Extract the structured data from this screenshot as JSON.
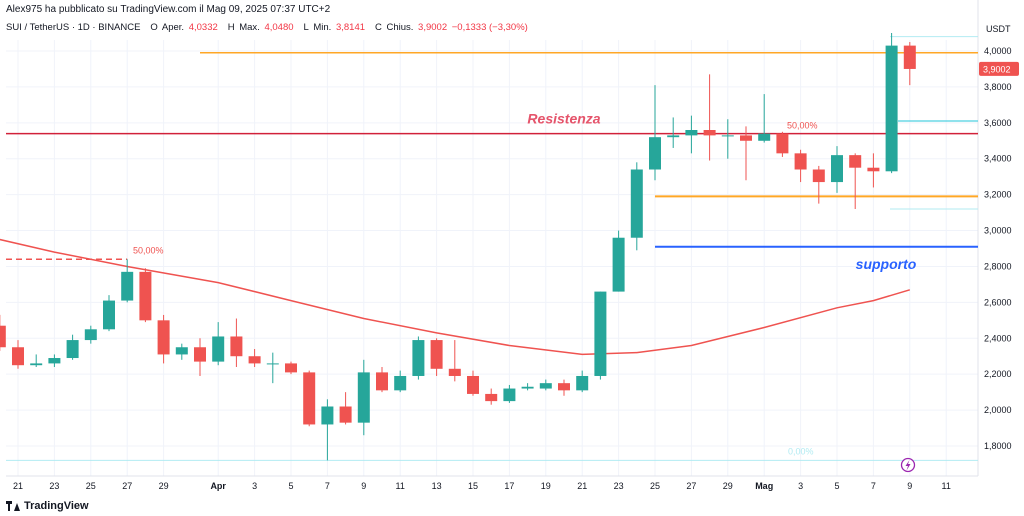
{
  "header": {
    "published": "Alex975 ha pubblicato su TradingView.com il Mag 09, 2025 07:37 UTC+2",
    "symbol": "SUI / TetherUS · 1D · BINANCE",
    "open_label": "O",
    "open_text": "Aper.",
    "open_value": "4,0332",
    "high_label": "H",
    "high_text": "Max.",
    "high_value": "4,0480",
    "low_label": "L",
    "low_text": "Min.",
    "low_value": "3,8141",
    "close_label": "C",
    "close_text": "Chius.",
    "close_value": "3,9002",
    "change": "−0,1333 (−3,30%)"
  },
  "footer": {
    "brand": "TradingView"
  },
  "colors": {
    "up": "#26a69a",
    "down": "#ef5350",
    "ma": "#ef5350",
    "resistance": "#d1213a",
    "support": "#2962ff",
    "orange": "#ffa726",
    "cyan": "#4dd0e1"
  },
  "chart_data": {
    "type": "candlestick",
    "y_unit": "USDT",
    "ylim": [
      1.7,
      4.2
    ],
    "y_ticks": [
      "4,0000",
      "3,8000",
      "3,6000",
      "3,4000",
      "3,2000",
      "3,0000",
      "2,8000",
      "2,6000",
      "2,4000",
      "2,2000",
      "2,0000",
      "1,8000"
    ],
    "y_tick_values": [
      4.0,
      3.8,
      3.6,
      3.4,
      3.2,
      3.0,
      2.8,
      2.6,
      2.4,
      2.2,
      2.0,
      1.8
    ],
    "x_start": "2025-03-21",
    "x_end": "2025-05-11",
    "x_ticks": [
      {
        "date": "2025-03-21",
        "label": "21"
      },
      {
        "date": "2025-03-23",
        "label": "23"
      },
      {
        "date": "2025-03-25",
        "label": "25"
      },
      {
        "date": "2025-03-27",
        "label": "27"
      },
      {
        "date": "2025-03-29",
        "label": "29"
      },
      {
        "date": "2025-04-01",
        "label": "Apr"
      },
      {
        "date": "2025-04-03",
        "label": "3"
      },
      {
        "date": "2025-04-05",
        "label": "5"
      },
      {
        "date": "2025-04-07",
        "label": "7"
      },
      {
        "date": "2025-04-09",
        "label": "9"
      },
      {
        "date": "2025-04-11",
        "label": "11"
      },
      {
        "date": "2025-04-13",
        "label": "13"
      },
      {
        "date": "2025-04-15",
        "label": "15"
      },
      {
        "date": "2025-04-17",
        "label": "17"
      },
      {
        "date": "2025-04-19",
        "label": "19"
      },
      {
        "date": "2025-04-21",
        "label": "21"
      },
      {
        "date": "2025-04-23",
        "label": "23"
      },
      {
        "date": "2025-04-25",
        "label": "25"
      },
      {
        "date": "2025-04-27",
        "label": "27"
      },
      {
        "date": "2025-04-29",
        "label": "29"
      },
      {
        "date": "2025-05-01",
        "label": "Mag"
      },
      {
        "date": "2025-05-03",
        "label": "3"
      },
      {
        "date": "2025-05-05",
        "label": "5"
      },
      {
        "date": "2025-05-07",
        "label": "7"
      },
      {
        "date": "2025-05-09",
        "label": "9"
      },
      {
        "date": "2025-05-11",
        "label": "11"
      }
    ],
    "candles": [
      {
        "date": "2025-03-20",
        "o": 2.47,
        "h": 2.53,
        "l": 2.33,
        "c": 2.35
      },
      {
        "date": "2025-03-21",
        "o": 2.35,
        "h": 2.39,
        "l": 2.23,
        "c": 2.25
      },
      {
        "date": "2025-03-22",
        "o": 2.25,
        "h": 2.31,
        "l": 2.24,
        "c": 2.26
      },
      {
        "date": "2025-03-23",
        "o": 2.26,
        "h": 2.31,
        "l": 2.24,
        "c": 2.29
      },
      {
        "date": "2025-03-24",
        "o": 2.29,
        "h": 2.42,
        "l": 2.28,
        "c": 2.39
      },
      {
        "date": "2025-03-25",
        "o": 2.39,
        "h": 2.47,
        "l": 2.37,
        "c": 2.45
      },
      {
        "date": "2025-03-26",
        "o": 2.45,
        "h": 2.64,
        "l": 2.44,
        "c": 2.61
      },
      {
        "date": "2025-03-27",
        "o": 2.61,
        "h": 2.84,
        "l": 2.6,
        "c": 2.77
      },
      {
        "date": "2025-03-28",
        "o": 2.77,
        "h": 2.79,
        "l": 2.49,
        "c": 2.5
      },
      {
        "date": "2025-03-29",
        "o": 2.5,
        "h": 2.53,
        "l": 2.26,
        "c": 2.31
      },
      {
        "date": "2025-03-30",
        "o": 2.31,
        "h": 2.37,
        "l": 2.28,
        "c": 2.35
      },
      {
        "date": "2025-03-31",
        "o": 2.35,
        "h": 2.4,
        "l": 2.19,
        "c": 2.27
      },
      {
        "date": "2025-04-01",
        "o": 2.27,
        "h": 2.49,
        "l": 2.25,
        "c": 2.41
      },
      {
        "date": "2025-04-02",
        "o": 2.41,
        "h": 2.51,
        "l": 2.24,
        "c": 2.3
      },
      {
        "date": "2025-04-03",
        "o": 2.3,
        "h": 2.34,
        "l": 2.24,
        "c": 2.26
      },
      {
        "date": "2025-04-04",
        "o": 2.26,
        "h": 2.32,
        "l": 2.15,
        "c": 2.26
      },
      {
        "date": "2025-04-05",
        "o": 2.26,
        "h": 2.27,
        "l": 2.2,
        "c": 2.21
      },
      {
        "date": "2025-04-06",
        "o": 2.21,
        "h": 2.22,
        "l": 1.91,
        "c": 1.92
      },
      {
        "date": "2025-04-07",
        "o": 1.92,
        "h": 2.06,
        "l": 1.72,
        "c": 2.02
      },
      {
        "date": "2025-04-08",
        "o": 2.02,
        "h": 2.1,
        "l": 1.92,
        "c": 1.93
      },
      {
        "date": "2025-04-09",
        "o": 1.93,
        "h": 2.28,
        "l": 1.86,
        "c": 2.21
      },
      {
        "date": "2025-04-10",
        "o": 2.21,
        "h": 2.24,
        "l": 2.1,
        "c": 2.11
      },
      {
        "date": "2025-04-11",
        "o": 2.11,
        "h": 2.22,
        "l": 2.1,
        "c": 2.19
      },
      {
        "date": "2025-04-12",
        "o": 2.19,
        "h": 2.41,
        "l": 2.17,
        "c": 2.39
      },
      {
        "date": "2025-04-13",
        "o": 2.39,
        "h": 2.4,
        "l": 2.19,
        "c": 2.23
      },
      {
        "date": "2025-04-14",
        "o": 2.23,
        "h": 2.39,
        "l": 2.16,
        "c": 2.19
      },
      {
        "date": "2025-04-15",
        "o": 2.19,
        "h": 2.22,
        "l": 2.08,
        "c": 2.09
      },
      {
        "date": "2025-04-16",
        "o": 2.09,
        "h": 2.12,
        "l": 2.03,
        "c": 2.05
      },
      {
        "date": "2025-04-17",
        "o": 2.05,
        "h": 2.14,
        "l": 2.04,
        "c": 2.12
      },
      {
        "date": "2025-04-18",
        "o": 2.12,
        "h": 2.15,
        "l": 2.11,
        "c": 2.13
      },
      {
        "date": "2025-04-19",
        "o": 2.12,
        "h": 2.17,
        "l": 2.11,
        "c": 2.15
      },
      {
        "date": "2025-04-20",
        "o": 2.15,
        "h": 2.17,
        "l": 2.08,
        "c": 2.11
      },
      {
        "date": "2025-04-21",
        "o": 2.11,
        "h": 2.22,
        "l": 2.1,
        "c": 2.19
      },
      {
        "date": "2025-04-22",
        "o": 2.19,
        "h": 2.66,
        "l": 2.17,
        "c": 2.66
      },
      {
        "date": "2025-04-23",
        "o": 2.66,
        "h": 3.0,
        "l": 2.66,
        "c": 2.96
      },
      {
        "date": "2025-04-24",
        "o": 2.96,
        "h": 3.38,
        "l": 2.89,
        "c": 3.34
      },
      {
        "date": "2025-04-25",
        "o": 3.34,
        "h": 3.81,
        "l": 3.28,
        "c": 3.52
      },
      {
        "date": "2025-04-26",
        "o": 3.52,
        "h": 3.63,
        "l": 3.46,
        "c": 3.53
      },
      {
        "date": "2025-04-27",
        "o": 3.53,
        "h": 3.64,
        "l": 3.43,
        "c": 3.56
      },
      {
        "date": "2025-04-28",
        "o": 3.56,
        "h": 3.87,
        "l": 3.39,
        "c": 3.53
      },
      {
        "date": "2025-04-29",
        "o": 3.53,
        "h": 3.62,
        "l": 3.4,
        "c": 3.53
      },
      {
        "date": "2025-04-30",
        "o": 3.53,
        "h": 3.58,
        "l": 3.28,
        "c": 3.5
      },
      {
        "date": "2025-05-01",
        "o": 3.5,
        "h": 3.76,
        "l": 3.49,
        "c": 3.54
      },
      {
        "date": "2025-05-02",
        "o": 3.54,
        "h": 3.55,
        "l": 3.41,
        "c": 3.43
      },
      {
        "date": "2025-05-03",
        "o": 3.43,
        "h": 3.45,
        "l": 3.27,
        "c": 3.34
      },
      {
        "date": "2025-05-04",
        "o": 3.34,
        "h": 3.36,
        "l": 3.15,
        "c": 3.27
      },
      {
        "date": "2025-05-05",
        "o": 3.27,
        "h": 3.47,
        "l": 3.21,
        "c": 3.42
      },
      {
        "date": "2025-05-06",
        "o": 3.42,
        "h": 3.43,
        "l": 3.12,
        "c": 3.35
      },
      {
        "date": "2025-05-07",
        "o": 3.35,
        "h": 3.43,
        "l": 3.24,
        "c": 3.33
      },
      {
        "date": "2025-05-08",
        "o": 3.33,
        "h": 4.1,
        "l": 3.32,
        "c": 4.03
      },
      {
        "date": "2025-05-09",
        "o": 4.03,
        "h": 4.05,
        "l": 3.81,
        "c": 3.9
      }
    ],
    "moving_average": [
      {
        "date": "2025-03-20",
        "v": 2.95
      },
      {
        "date": "2025-03-23",
        "v": 2.88
      },
      {
        "date": "2025-03-27",
        "v": 2.8
      },
      {
        "date": "2025-04-01",
        "v": 2.71
      },
      {
        "date": "2025-04-05",
        "v": 2.61
      },
      {
        "date": "2025-04-09",
        "v": 2.51
      },
      {
        "date": "2025-04-13",
        "v": 2.43
      },
      {
        "date": "2025-04-17",
        "v": 2.36
      },
      {
        "date": "2025-04-21",
        "v": 2.31
      },
      {
        "date": "2025-04-24",
        "v": 2.32
      },
      {
        "date": "2025-04-27",
        "v": 2.36
      },
      {
        "date": "2025-05-01",
        "v": 2.46
      },
      {
        "date": "2025-05-05",
        "v": 2.57
      },
      {
        "date": "2025-05-07",
        "v": 2.61
      },
      {
        "date": "2025-05-09",
        "v": 2.67
      }
    ],
    "annotations": {
      "resistance": {
        "label": "Resistenza",
        "value": 3.54
      },
      "support": {
        "label": "supporto",
        "value": 2.91,
        "from": "2025-04-25"
      },
      "orange_top": {
        "value": 3.99,
        "from": "2025-03-31"
      },
      "orange_mid": {
        "value": 3.19,
        "from": "2025-04-25"
      },
      "fib_50_high": {
        "label": "50,00%",
        "value": 3.54
      },
      "fib_50_low": {
        "label": "50,00%",
        "value": 2.84
      },
      "fib_0": {
        "label": "0,00%",
        "value": 1.72
      },
      "cyan_top": {
        "value": 4.08
      },
      "cyan_mid": {
        "value": 3.61
      },
      "cyan_low": {
        "value": 3.12
      }
    },
    "last_price": "3,9002",
    "last_price_value": 3.9002
  }
}
